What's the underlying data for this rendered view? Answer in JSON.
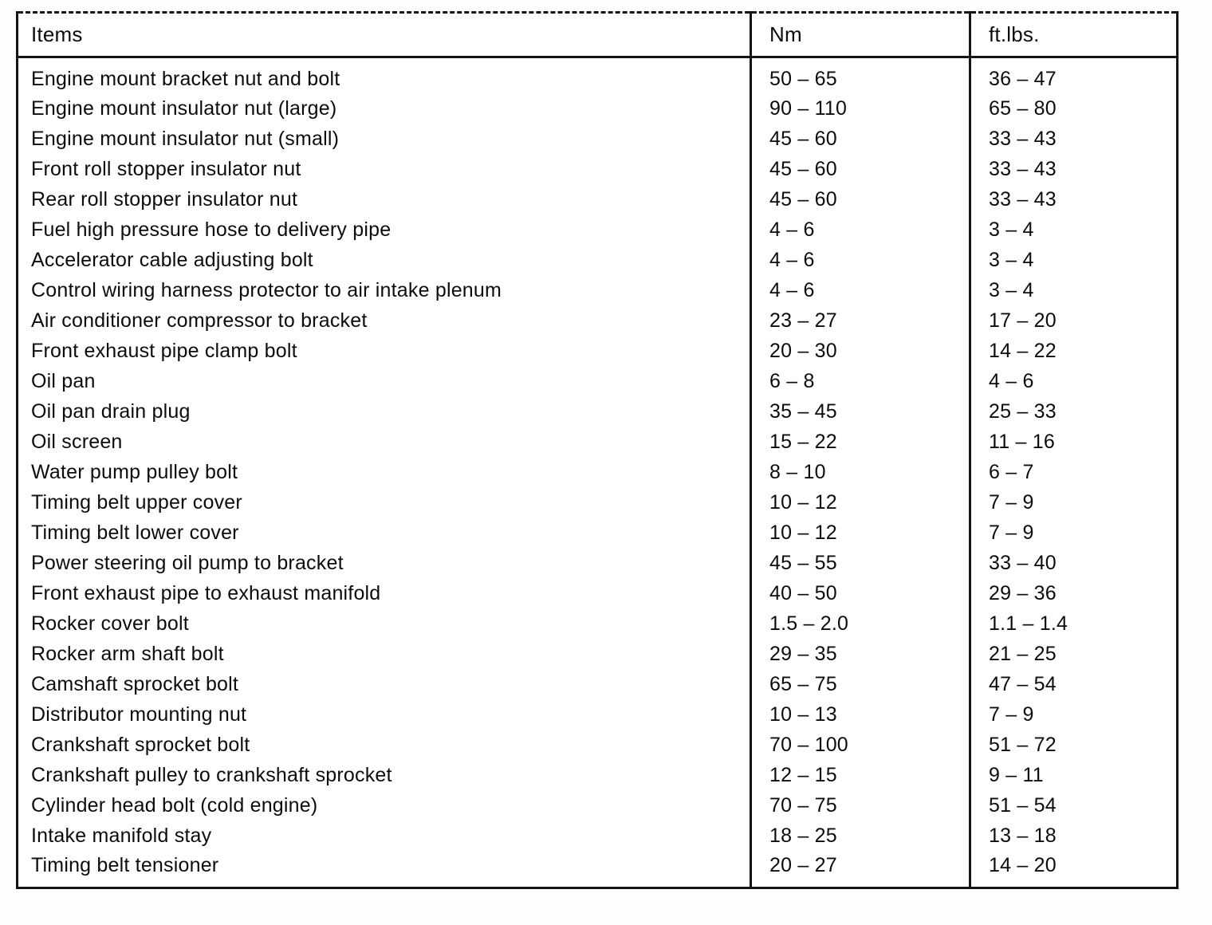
{
  "table": {
    "columns": [
      "Items",
      "Nm",
      "ft.lbs."
    ],
    "rows": [
      {
        "item": "Engine mount bracket nut and bolt",
        "nm": "50 – 65",
        "ftlbs": "36 – 47"
      },
      {
        "item": "Engine mount insulator nut (large)",
        "nm": "90 – 110",
        "ftlbs": "65 – 80"
      },
      {
        "item": "Engine mount insulator nut (small)",
        "nm": "45 – 60",
        "ftlbs": "33 – 43"
      },
      {
        "item": "Front roll stopper insulator nut",
        "nm": "45 – 60",
        "ftlbs": "33 – 43"
      },
      {
        "item": "Rear roll stopper insulator nut",
        "nm": "45 – 60",
        "ftlbs": "33 – 43"
      },
      {
        "item": "Fuel high pressure hose to delivery pipe",
        "nm": "4 – 6",
        "ftlbs": "3 – 4"
      },
      {
        "item": "Accelerator cable adjusting bolt",
        "nm": "4 – 6",
        "ftlbs": "3 – 4"
      },
      {
        "item": "Control wiring harness protector to air intake plenum",
        "nm": "4 – 6",
        "ftlbs": "3 – 4"
      },
      {
        "item": "Air conditioner compressor to bracket",
        "nm": "23 – 27",
        "ftlbs": "17 – 20"
      },
      {
        "item": "Front exhaust pipe clamp bolt",
        "nm": "20 – 30",
        "ftlbs": "14 – 22"
      },
      {
        "item": "Oil pan",
        "nm": "6 – 8",
        "ftlbs": "4 – 6"
      },
      {
        "item": "Oil pan drain plug",
        "nm": "35 – 45",
        "ftlbs": "25 – 33"
      },
      {
        "item": "Oil screen",
        "nm": "15 – 22",
        "ftlbs": "11 – 16"
      },
      {
        "item": "Water pump pulley bolt",
        "nm": "8 – 10",
        "ftlbs": "6 – 7"
      },
      {
        "item": "Timing belt upper cover",
        "nm": "10 – 12",
        "ftlbs": "7 – 9"
      },
      {
        "item": "Timing belt lower cover",
        "nm": "10 – 12",
        "ftlbs": "7 – 9"
      },
      {
        "item": "Power steering oil pump to bracket",
        "nm": "45 – 55",
        "ftlbs": "33 – 40"
      },
      {
        "item": "Front exhaust pipe to exhaust manifold",
        "nm": "40 – 50",
        "ftlbs": "29 – 36"
      },
      {
        "item": "Rocker cover bolt",
        "nm": "1.5 – 2.0",
        "ftlbs": "1.1 – 1.4"
      },
      {
        "item": "Rocker arm shaft bolt",
        "nm": "29 – 35",
        "ftlbs": "21 – 25"
      },
      {
        "item": "Camshaft sprocket bolt",
        "nm": "65 – 75",
        "ftlbs": "47 – 54"
      },
      {
        "item": "Distributor mounting nut",
        "nm": "10 – 13",
        "ftlbs": "7 – 9"
      },
      {
        "item": "Crankshaft sprocket bolt",
        "nm": "70 – 100",
        "ftlbs": "51 – 72"
      },
      {
        "item": "Crankshaft pulley to crankshaft sprocket",
        "nm": "12 – 15",
        "ftlbs": "9 – 11"
      },
      {
        "item": "Cylinder head bolt (cold engine)",
        "nm": "70 – 75",
        "ftlbs": "51 – 54"
      },
      {
        "item": "Intake manifold stay",
        "nm": "18 – 25",
        "ftlbs": "13 – 18"
      },
      {
        "item": "Timing belt tensioner",
        "nm": "20 – 27",
        "ftlbs": "14 – 20"
      }
    ]
  }
}
